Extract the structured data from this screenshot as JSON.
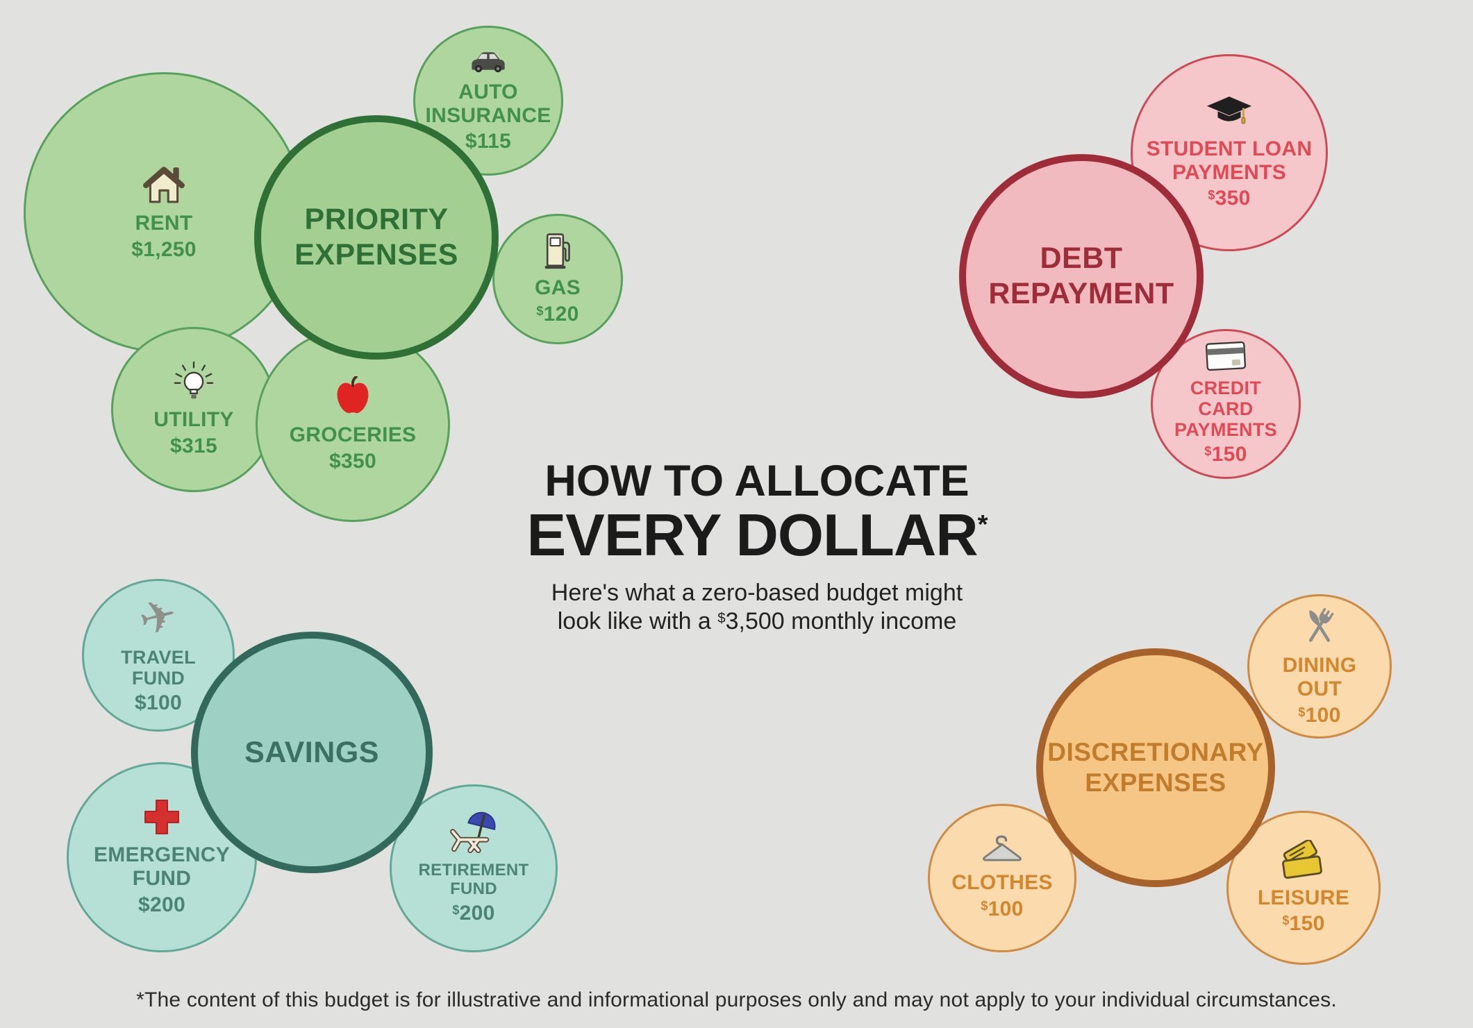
{
  "background": "#e1e1e0",
  "title": {
    "line1": "HOW TO ALLOCATE",
    "line2": "EVERY DOLLAR",
    "asterisk": "*",
    "subtitle_line1": "Here's what a zero-based budget might",
    "subtitle_line2_prefix": "look like with a ",
    "subtitle_line2_sup": "$",
    "subtitle_line2_rest": "3,500 monthly income"
  },
  "footnote": "*The content of this budget is for illustrative and informational purposes only and may not apply to your individual circumstances.",
  "clusters": [
    {
      "name": "PRIORITY EXPENSES",
      "center_label_line1": "PRIORITY",
      "center_label_line2": "EXPENSES",
      "colors": {
        "center_fill": "#a3cf92",
        "center_border": "#2f7036",
        "center_text": "#2f7036",
        "sat_fill": "#aed69e",
        "sat_border": "#57a15c",
        "sat_text": "#41904c"
      },
      "items": [
        {
          "label": "RENT",
          "amount": {
            "text": "$1,250",
            "sup": false
          },
          "icon": "house"
        },
        {
          "label": "AUTO INSURANCE",
          "amount": {
            "text": "$115",
            "sup": false
          },
          "icon": "car"
        },
        {
          "label": "GAS",
          "amount": {
            "text": "$120",
            "sup": true
          },
          "icon": "gas-pump"
        },
        {
          "label": "UTILITY",
          "amount": {
            "text": "$315",
            "sup": false
          },
          "icon": "light-bulb"
        },
        {
          "label": "GROCERIES",
          "amount": {
            "text": "$350",
            "sup": false
          },
          "icon": "apple"
        }
      ]
    },
    {
      "name": "DEBT REPAYMENT",
      "center_label_line1": "DEBT",
      "center_label_line2": "REPAYMENT",
      "colors": {
        "center_fill": "#f1babf",
        "center_border": "#9f2c39",
        "center_text": "#9f2c39",
        "sat_fill": "#f5c7cb",
        "sat_border": "#cc4a55",
        "sat_text": "#e04a55"
      },
      "items": [
        {
          "label": "STUDENT LOAN PAYMENTS",
          "amount": {
            "text": "$350",
            "sup": true
          },
          "icon": "grad-cap"
        },
        {
          "label": "CREDIT CARD PAYMENTS",
          "amount": {
            "text": "$150",
            "sup": true
          },
          "icon": "credit-card"
        }
      ]
    },
    {
      "name": "SAVINGS",
      "center_label_line1": "SAVINGS",
      "center_label_line2": "",
      "colors": {
        "center_fill": "#9ed1c3",
        "center_border": "#33695c",
        "center_text": "#3c7060",
        "sat_fill": "#b6dfd5",
        "sat_border": "#63a897",
        "sat_text": "#4c8473"
      },
      "items": [
        {
          "label": "TRAVEL FUND",
          "amount": {
            "text": "$100",
            "sup": false
          },
          "icon": "airplane"
        },
        {
          "label": "EMERGENCY FUND",
          "amount": {
            "text": "$200",
            "sup": false
          },
          "icon": "medical-cross"
        },
        {
          "label": "RETIREMENT FUND",
          "amount": {
            "text": "$200",
            "sup": true
          },
          "icon": "beach-chair"
        }
      ]
    },
    {
      "name": "DISCRETIONARY EXPENSES",
      "center_label_line1": "DISCRETIONARY",
      "center_label_line2": "EXPENSES",
      "colors": {
        "center_fill": "#f5c685",
        "center_border": "#a7622b",
        "center_text": "#c17c2c",
        "sat_fill": "#fbdaad",
        "sat_border": "#d08b42",
        "sat_text": "#d2872e"
      },
      "items": [
        {
          "label": "DINING OUT",
          "amount": {
            "text": "$100",
            "sup": true
          },
          "icon": "fork-knife"
        },
        {
          "label": "CLOTHES",
          "amount": {
            "text": "$100",
            "sup": true
          },
          "icon": "hanger"
        },
        {
          "label": "LEISURE",
          "amount": {
            "text": "$150",
            "sup": true
          },
          "icon": "tickets"
        }
      ]
    }
  ],
  "chart_data": {
    "type": "table",
    "title": "HOW TO ALLOCATE EVERY DOLLAR*",
    "subtitle": "Here's what a zero-based budget might look like with a $3,500 monthly income",
    "monthly_income_usd": 3500,
    "columns": [
      "category",
      "item",
      "amount_usd"
    ],
    "rows": [
      [
        "PRIORITY EXPENSES",
        "RENT",
        1250
      ],
      [
        "PRIORITY EXPENSES",
        "AUTO INSURANCE",
        115
      ],
      [
        "PRIORITY EXPENSES",
        "GAS",
        120
      ],
      [
        "PRIORITY EXPENSES",
        "UTILITY",
        315
      ],
      [
        "PRIORITY EXPENSES",
        "GROCERIES",
        350
      ],
      [
        "DEBT REPAYMENT",
        "STUDENT LOAN PAYMENTS",
        350
      ],
      [
        "DEBT REPAYMENT",
        "CREDIT CARD PAYMENTS",
        150
      ],
      [
        "SAVINGS",
        "TRAVEL FUND",
        100
      ],
      [
        "SAVINGS",
        "EMERGENCY FUND",
        200
      ],
      [
        "SAVINGS",
        "RETIREMENT FUND",
        200
      ],
      [
        "DISCRETIONARY EXPENSES",
        "DINING OUT",
        100
      ],
      [
        "DISCRETIONARY EXPENSES",
        "CLOTHES",
        100
      ],
      [
        "DISCRETIONARY EXPENSES",
        "LEISURE",
        150
      ]
    ]
  }
}
